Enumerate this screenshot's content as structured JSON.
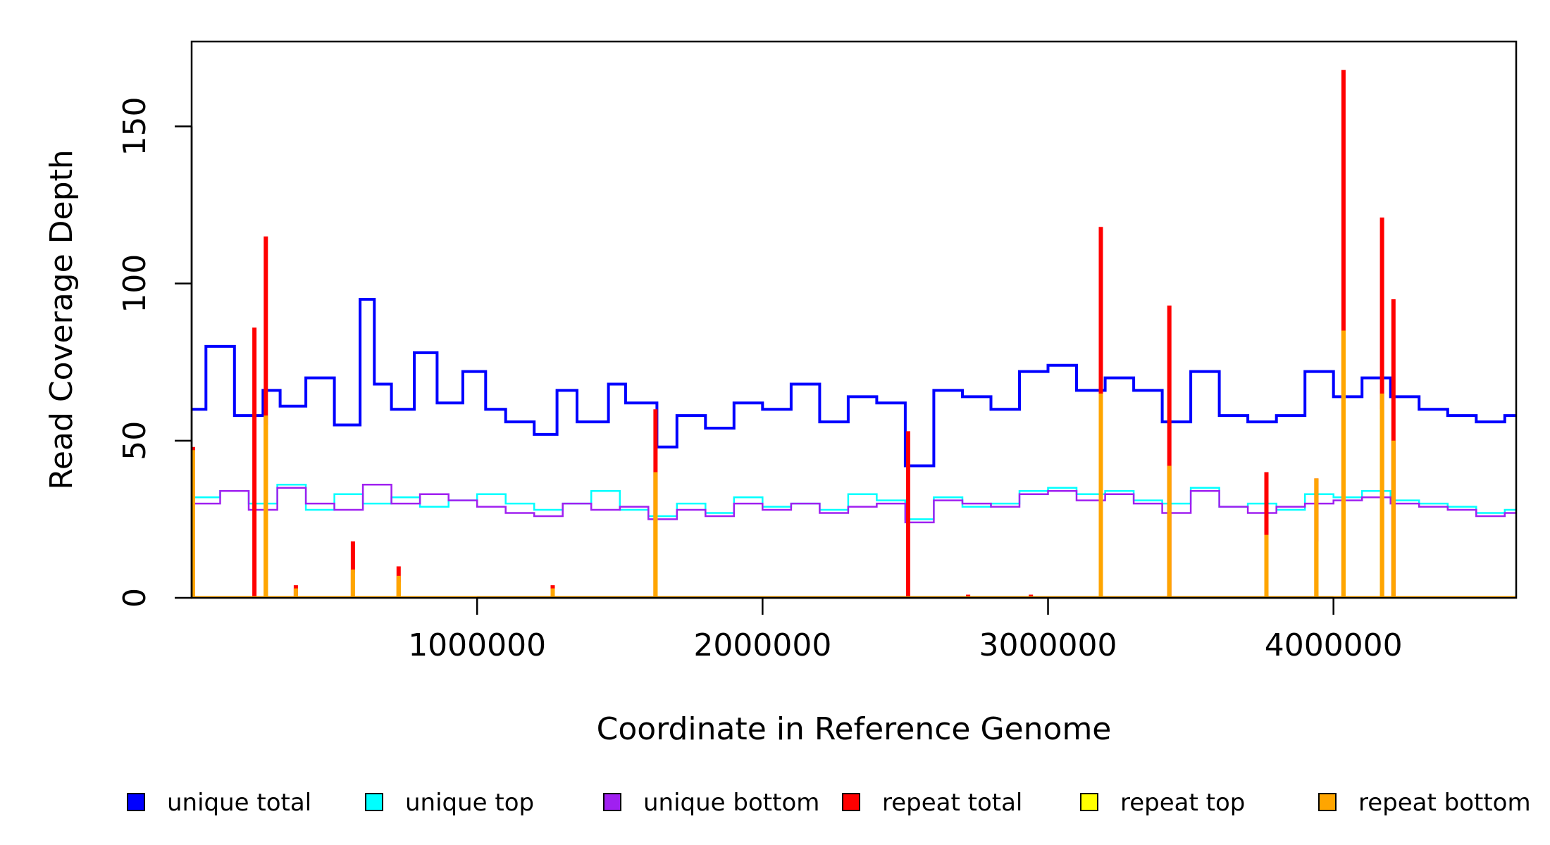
{
  "chart_data": {
    "type": "line",
    "title": "",
    "xlabel": "Coordinate in Reference Genome",
    "ylabel": "Read Coverage Depth",
    "xlim": [
      0,
      4640000
    ],
    "ylim": [
      0,
      177
    ],
    "x_ticks": [
      1000000,
      2000000,
      3000000,
      4000000
    ],
    "x_tick_labels": [
      "1000000",
      "2000000",
      "3000000",
      "4000000"
    ],
    "y_ticks": [
      0,
      50,
      100,
      150
    ],
    "y_tick_labels": [
      "0",
      "50",
      "100",
      "150"
    ],
    "grid": false,
    "legend_position": "bottom",
    "series": [
      {
        "name": "unique total",
        "color": "#0000FF",
        "style": "step",
        "x": [
          0,
          50000,
          150000,
          250000,
          310000,
          400000,
          500000,
          590000,
          640000,
          700000,
          780000,
          860000,
          950000,
          1030000,
          1100000,
          1200000,
          1280000,
          1350000,
          1460000,
          1520000,
          1630000,
          1700000,
          1800000,
          1900000,
          2000000,
          2100000,
          2200000,
          2300000,
          2400000,
          2500000,
          2600000,
          2700000,
          2800000,
          2900000,
          3000000,
          3100000,
          3200000,
          3300000,
          3400000,
          3500000,
          3600000,
          3700000,
          3800000,
          3900000,
          4000000,
          4100000,
          4200000,
          4300000,
          4400000,
          4500000,
          4600000
        ],
        "y": [
          60,
          80,
          58,
          66,
          61,
          70,
          55,
          95,
          68,
          60,
          78,
          62,
          72,
          60,
          56,
          52,
          66,
          56,
          68,
          62,
          48,
          58,
          54,
          62,
          60,
          68,
          56,
          64,
          62,
          42,
          66,
          64,
          60,
          72,
          74,
          66,
          70,
          66,
          56,
          72,
          58,
          56,
          58,
          72,
          64,
          70,
          64,
          60,
          58,
          56,
          58
        ]
      },
      {
        "name": "unique top",
        "color": "#00FFFF",
        "style": "step",
        "x": [
          0,
          100000,
          200000,
          300000,
          400000,
          500000,
          600000,
          700000,
          800000,
          900000,
          1000000,
          1100000,
          1200000,
          1300000,
          1400000,
          1500000,
          1600000,
          1700000,
          1800000,
          1900000,
          2000000,
          2100000,
          2200000,
          2300000,
          2400000,
          2500000,
          2600000,
          2700000,
          2800000,
          2900000,
          3000000,
          3100000,
          3200000,
          3300000,
          3400000,
          3500000,
          3600000,
          3700000,
          3800000,
          3900000,
          4000000,
          4100000,
          4200000,
          4300000,
          4400000,
          4500000,
          4600000
        ],
        "y": [
          32,
          34,
          30,
          36,
          28,
          33,
          30,
          32,
          29,
          31,
          33,
          30,
          28,
          30,
          34,
          28,
          26,
          30,
          27,
          32,
          29,
          30,
          28,
          33,
          31,
          25,
          32,
          29,
          30,
          34,
          35,
          33,
          34,
          31,
          30,
          35,
          29,
          30,
          28,
          33,
          32,
          34,
          31,
          30,
          29,
          27,
          28
        ]
      },
      {
        "name": "unique bottom",
        "color": "#A020F0",
        "style": "step",
        "x": [
          0,
          100000,
          200000,
          300000,
          400000,
          500000,
          600000,
          700000,
          800000,
          900000,
          1000000,
          1100000,
          1200000,
          1300000,
          1400000,
          1500000,
          1600000,
          1700000,
          1800000,
          1900000,
          2000000,
          2100000,
          2200000,
          2300000,
          2400000,
          2500000,
          2600000,
          2700000,
          2800000,
          2900000,
          3000000,
          3100000,
          3200000,
          3300000,
          3400000,
          3500000,
          3600000,
          3700000,
          3800000,
          3900000,
          4000000,
          4100000,
          4200000,
          4300000,
          4400000,
          4500000,
          4600000
        ],
        "y": [
          30,
          34,
          28,
          35,
          30,
          28,
          36,
          30,
          33,
          31,
          29,
          27,
          26,
          30,
          28,
          29,
          25,
          28,
          26,
          30,
          28,
          30,
          27,
          29,
          30,
          24,
          31,
          30,
          29,
          33,
          34,
          31,
          33,
          30,
          27,
          34,
          29,
          27,
          29,
          30,
          31,
          32,
          30,
          29,
          28,
          26,
          27
        ]
      },
      {
        "name": "repeat total",
        "color": "#FF0000",
        "style": "spike",
        "x": [
          5000,
          220000,
          260000,
          365000,
          565000,
          725000,
          1265000,
          1625000,
          2510000,
          2720000,
          2940000,
          3185000,
          3425000,
          3765000,
          3940000,
          4035000,
          4170000,
          4210000
        ],
        "y": [
          48,
          86,
          115,
          4,
          18,
          10,
          4,
          60,
          53,
          1,
          1,
          118,
          93,
          40,
          38,
          168,
          121,
          95
        ]
      },
      {
        "name": "repeat top",
        "color": "#FFFF00",
        "style": "spike",
        "x": [
          5000,
          260000,
          565000,
          725000,
          1625000,
          3185000,
          3765000,
          3940000,
          4035000,
          4170000
        ],
        "y": [
          24,
          55,
          8,
          5,
          28,
          60,
          20,
          18,
          85,
          60
        ]
      },
      {
        "name": "repeat bottom",
        "color": "#FFA500",
        "style": "spike",
        "x": [
          5000,
          260000,
          365000,
          565000,
          725000,
          1265000,
          1625000,
          3185000,
          3425000,
          3765000,
          3940000,
          4035000,
          4170000,
          4210000
        ],
        "y": [
          47,
          58,
          3,
          9,
          7,
          3,
          40,
          65,
          42,
          20,
          38,
          85,
          65,
          50
        ]
      }
    ]
  }
}
